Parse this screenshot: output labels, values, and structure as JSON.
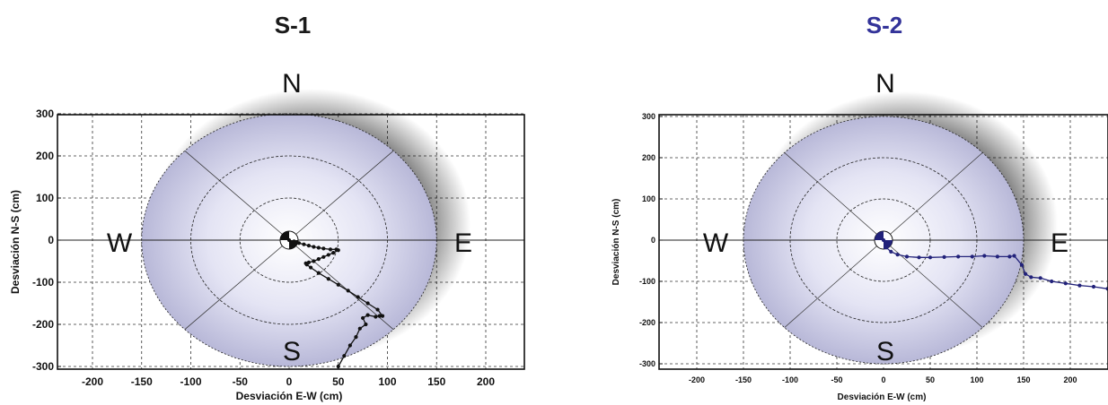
{
  "chart_data": [
    {
      "type": "scatter",
      "title": "S-1",
      "title_color": "#1a1a1a",
      "series_color": "#111111",
      "xlabel": "Desviación E-W (cm)",
      "ylabel": "Desviación N-S (cm)",
      "xlim": [
        -240,
        240
      ],
      "ylim": [
        -310,
        310
      ],
      "xticks": [
        -200,
        -150,
        -100,
        -50,
        0,
        50,
        100,
        150,
        200
      ],
      "yticks": [
        -300,
        -200,
        -100,
        0,
        100,
        200,
        300
      ],
      "compass": {
        "N": "N",
        "S": "S",
        "E": "E",
        "W": "W"
      },
      "grid": true,
      "target_rings_cm": [
        {
          "rx": 150,
          "ry": 300
        },
        {
          "rx": 100,
          "ry": 200
        },
        {
          "rx": 50,
          "ry": 100
        }
      ],
      "series": [
        {
          "x": [
            0,
            5,
            10,
            15,
            20,
            25,
            30,
            35,
            42,
            48,
            50,
            45,
            40,
            35,
            30,
            25,
            20,
            17,
            18,
            22,
            30,
            40,
            50,
            60,
            70,
            80,
            90,
            95,
            92,
            88,
            80,
            75,
            78,
            72,
            68,
            62,
            56,
            50
          ],
          "y": [
            0,
            -3,
            -7,
            -10,
            -13,
            -16,
            -18,
            -20,
            -22,
            -22,
            -24,
            -30,
            -35,
            -40,
            -45,
            -50,
            -53,
            -55,
            -58,
            -65,
            -78,
            -92,
            -106,
            -120,
            -135,
            -150,
            -165,
            -180,
            -180,
            -182,
            -178,
            -185,
            -200,
            -210,
            -230,
            -250,
            -275,
            -300
          ]
        }
      ]
    },
    {
      "type": "scatter",
      "title": "S-2",
      "title_color": "#333399",
      "series_color": "#22227a",
      "xlabel": "Desviación E-W (cm)",
      "ylabel": "Desviación N-S (cm)",
      "xlim": [
        -240,
        240
      ],
      "ylim": [
        -310,
        310
      ],
      "xticks": [
        -200,
        -150,
        -100,
        -50,
        0,
        50,
        100,
        150,
        200
      ],
      "yticks": [
        -300,
        -200,
        -100,
        0,
        100,
        200,
        300
      ],
      "compass": {
        "N": "N",
        "S": "S",
        "E": "E",
        "W": "W"
      },
      "grid": true,
      "target_rings_cm": [
        {
          "rx": 150,
          "ry": 300
        },
        {
          "rx": 100,
          "ry": 200
        },
        {
          "rx": 50,
          "ry": 100
        }
      ],
      "series": [
        {
          "x": [
            0,
            3,
            8,
            15,
            25,
            38,
            50,
            65,
            80,
            95,
            108,
            122,
            135,
            140,
            148,
            152,
            158,
            168,
            180,
            195,
            210,
            225,
            240
          ],
          "y": [
            0,
            -18,
            -28,
            -35,
            -40,
            -42,
            -42,
            -41,
            -40,
            -40,
            -38,
            -40,
            -40,
            -38,
            -60,
            -82,
            -90,
            -92,
            -100,
            -105,
            -110,
            -113,
            -118
          ]
        }
      ]
    }
  ]
}
